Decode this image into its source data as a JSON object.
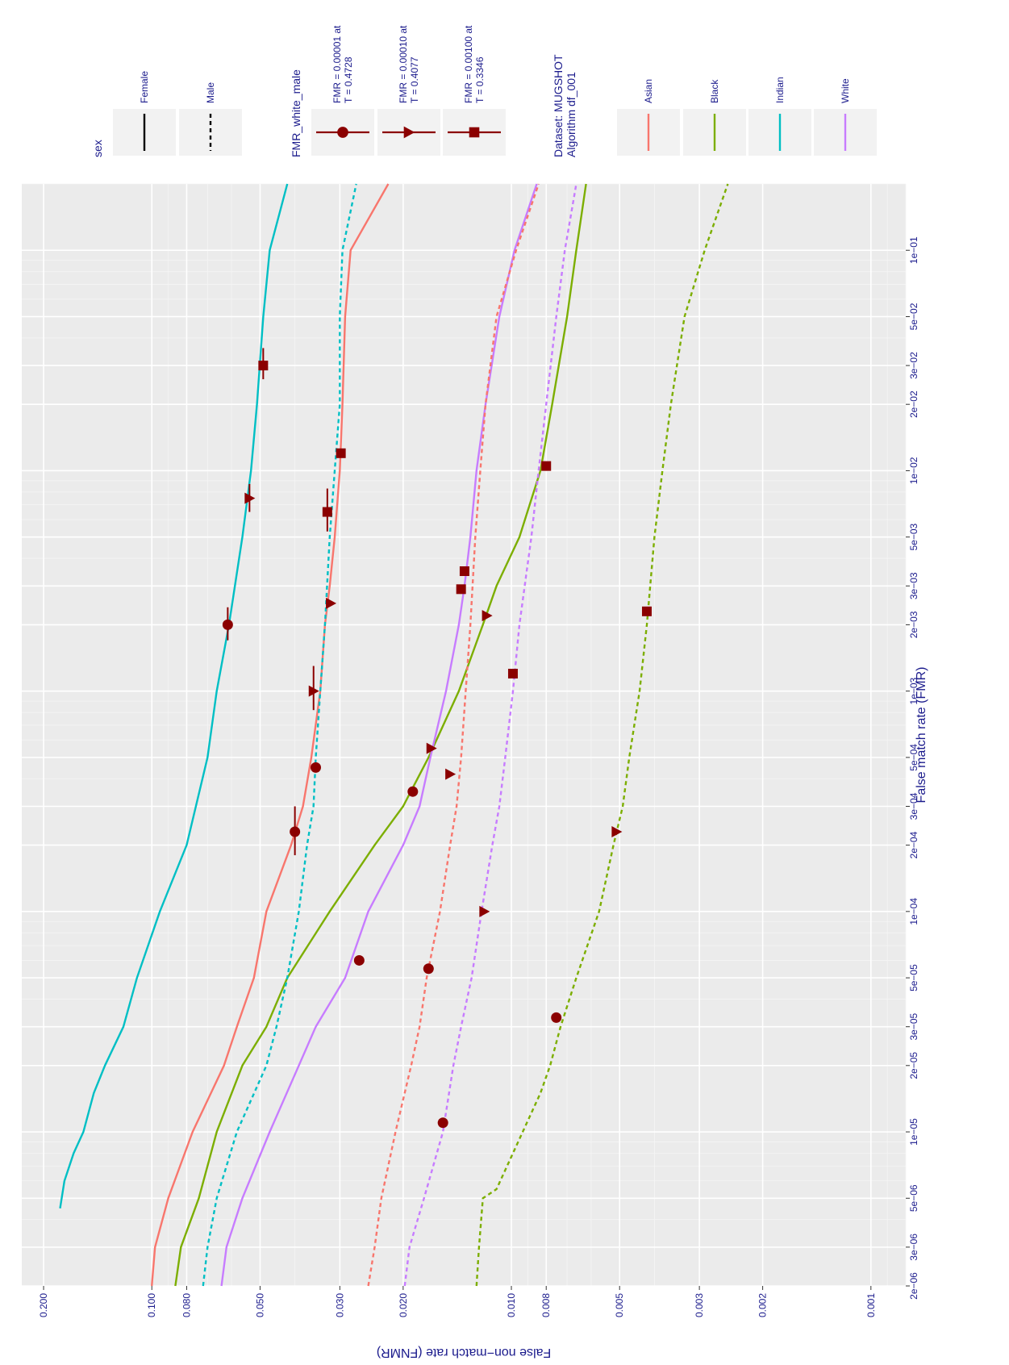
{
  "chart_data": {
    "type": "line",
    "title": "",
    "xlabel": "False match rate (FMR)",
    "ylabel": "False non−match rate (FNMR)",
    "x_scale": "log",
    "y_scale": "log",
    "xlim": [
      2e-06,
      0.2
    ],
    "ylim": [
      0.0008,
      0.23
    ],
    "x_ticks": [
      2e-06,
      3e-06,
      5e-06,
      1e-05,
      2e-05,
      3e-05,
      5e-05,
      0.0001,
      0.0002,
      0.0003,
      0.0005,
      0.001,
      0.002,
      0.003,
      0.005,
      0.01,
      0.02,
      0.03,
      0.05,
      0.1
    ],
    "x_tick_labels": [
      "2e−06",
      "3e−06",
      "5e−06",
      "1e−05",
      "2e−05",
      "3e−05",
      "5e−05",
      "1e−04",
      "2e−04",
      "3e−04",
      "5e−04",
      "1e−03",
      "2e−03",
      "3e−03",
      "5e−03",
      "1e−02",
      "2e−02",
      "3e−02",
      "5e−02",
      "1e−01"
    ],
    "y_ticks": [
      0.001,
      0.002,
      0.003,
      0.005,
      0.008,
      0.01,
      0.02,
      0.03,
      0.05,
      0.08,
      0.1,
      0.2
    ],
    "y_tick_labels": [
      "0.001",
      "0.002",
      "0.003",
      "0.005",
      "0.008",
      "0.010",
      "0.020",
      "0.030",
      "0.050",
      "0.080",
      "0.100",
      "0.200"
    ],
    "grid": true,
    "series": [
      {
        "name": "Indian Female",
        "color": "#00BFC4",
        "dash": "solid",
        "x": [
          4.5e-06,
          6e-06,
          8e-06,
          1e-05,
          1.5e-05,
          2e-05,
          3e-05,
          5e-05,
          0.0001,
          0.0002,
          0.0005,
          0.001,
          0.002,
          0.005,
          0.01,
          0.02,
          0.05,
          0.1,
          0.2
        ],
        "y": [
          0.18,
          0.175,
          0.165,
          0.155,
          0.145,
          0.135,
          0.12,
          0.11,
          0.095,
          0.08,
          0.07,
          0.066,
          0.061,
          0.056,
          0.053,
          0.051,
          0.049,
          0.047,
          0.042
        ]
      },
      {
        "name": "Asian Female",
        "color": "#F8766D",
        "dash": "solid",
        "x": [
          2e-06,
          3e-06,
          5e-06,
          1e-05,
          2e-05,
          3e-05,
          5e-05,
          0.0001,
          0.0002,
          0.0003,
          0.0005,
          0.001,
          0.002,
          0.003,
          0.005,
          0.01,
          0.02,
          0.05,
          0.1,
          0.2
        ],
        "y": [
          0.1,
          0.098,
          0.09,
          0.077,
          0.063,
          0.058,
          0.052,
          0.048,
          0.041,
          0.038,
          0.036,
          0.034,
          0.033,
          0.032,
          0.031,
          0.03,
          0.0295,
          0.029,
          0.028,
          0.022
        ]
      },
      {
        "name": "Black Female",
        "color": "#7CAE00",
        "dash": "solid",
        "x": [
          2e-06,
          3e-06,
          5e-06,
          1e-05,
          2e-05,
          3e-05,
          5e-05,
          0.0001,
          0.0002,
          0.0003,
          0.0005,
          0.001,
          0.002,
          0.003,
          0.005,
          0.01,
          0.02,
          0.05,
          0.1,
          0.2
        ],
        "y": [
          0.086,
          0.083,
          0.074,
          0.066,
          0.056,
          0.048,
          0.042,
          0.032,
          0.024,
          0.02,
          0.017,
          0.014,
          0.012,
          0.011,
          0.0095,
          0.0083,
          0.0077,
          0.007,
          0.0066,
          0.0062
        ]
      },
      {
        "name": "White Female",
        "color": "#C77CFF",
        "dash": "solid",
        "x": [
          2e-06,
          3e-06,
          5e-06,
          1e-05,
          2e-05,
          3e-05,
          5e-05,
          0.0001,
          0.0002,
          0.0003,
          0.0005,
          0.001,
          0.002,
          0.003,
          0.005,
          0.01,
          0.02,
          0.05,
          0.1,
          0.2
        ],
        "y": [
          0.064,
          0.062,
          0.056,
          0.047,
          0.039,
          0.035,
          0.029,
          0.025,
          0.02,
          0.018,
          0.0168,
          0.0152,
          0.014,
          0.0135,
          0.013,
          0.0125,
          0.0118,
          0.0108,
          0.0098,
          0.0085
        ]
      },
      {
        "name": "Indian Male",
        "color": "#00BFC4",
        "dash": "dashed",
        "x": [
          2e-06,
          3e-06,
          5e-06,
          1e-05,
          2e-05,
          3e-05,
          5e-05,
          0.0001,
          0.0002,
          0.0003,
          0.0005,
          0.001,
          0.002,
          0.005,
          0.01,
          0.02,
          0.05,
          0.1,
          0.2
        ],
        "y": [
          0.072,
          0.07,
          0.066,
          0.058,
          0.048,
          0.045,
          0.042,
          0.039,
          0.037,
          0.0355,
          0.035,
          0.034,
          0.033,
          0.032,
          0.031,
          0.03,
          0.03,
          0.0295,
          0.027
        ]
      },
      {
        "name": "Asian Male",
        "color": "#F8766D",
        "dash": "dashed",
        "x": [
          2e-06,
          3e-06,
          5e-06,
          1e-05,
          2e-05,
          3e-05,
          5e-05,
          0.0001,
          0.0002,
          0.0003,
          0.0005,
          0.001,
          0.002,
          0.005,
          0.01,
          0.02,
          0.05,
          0.1,
          0.2
        ],
        "y": [
          0.025,
          0.024,
          0.023,
          0.021,
          0.019,
          0.018,
          0.0172,
          0.0158,
          0.0148,
          0.0142,
          0.0138,
          0.0134,
          0.013,
          0.0126,
          0.0122,
          0.0118,
          0.011,
          0.0097,
          0.0084
        ]
      },
      {
        "name": "White Male",
        "color": "#C77CFF",
        "dash": "dashed",
        "x": [
          2e-06,
          3e-06,
          5e-06,
          1e-05,
          2e-05,
          3e-05,
          5e-05,
          0.0001,
          0.0002,
          0.0003,
          0.0005,
          0.001,
          0.002,
          0.005,
          0.01,
          0.02,
          0.05,
          0.1,
          0.2
        ],
        "y": [
          0.0198,
          0.0192,
          0.0175,
          0.0155,
          0.0145,
          0.0138,
          0.0129,
          0.0121,
          0.0113,
          0.0108,
          0.0104,
          0.0099,
          0.0095,
          0.0088,
          0.0084,
          0.008,
          0.0075,
          0.0071,
          0.0066
        ]
      },
      {
        "name": "Black Male",
        "color": "#7CAE00",
        "dash": "dashed",
        "x": [
          2e-06,
          3e-06,
          5e-06,
          5.5e-06,
          1e-05,
          1.5e-05,
          2e-05,
          3e-05,
          5e-05,
          0.0001,
          0.0002,
          0.0003,
          0.0005,
          0.001,
          0.002,
          0.005,
          0.01,
          0.02,
          0.05,
          0.1,
          0.2
        ],
        "y": [
          0.0125,
          0.0123,
          0.012,
          0.011,
          0.0093,
          0.0083,
          0.0078,
          0.0073,
          0.0066,
          0.0057,
          0.0052,
          0.0049,
          0.0047,
          0.0044,
          0.0042,
          0.004,
          0.0038,
          0.0036,
          0.0033,
          0.0029,
          0.0025
        ]
      }
    ],
    "markers": [
      {
        "group": "Indian Female",
        "shape": "circle",
        "x": 0.002,
        "y": 0.0615,
        "xerr": [
          0.0017,
          0.0024
        ]
      },
      {
        "group": "Indian Female",
        "shape": "triangle",
        "x": 0.0075,
        "y": 0.0535,
        "xerr": [
          0.0065,
          0.0087
        ]
      },
      {
        "group": "Indian Female",
        "shape": "square",
        "x": 0.03,
        "y": 0.049,
        "xerr": [
          0.026,
          0.036
        ]
      },
      {
        "group": "Asian Female",
        "shape": "circle",
        "x": 0.00023,
        "y": 0.04,
        "xerr": [
          0.00018,
          0.0003
        ]
      },
      {
        "group": "Asian Female",
        "shape": "triangle",
        "x": 0.001,
        "y": 0.0355,
        "xerr": [
          0.00082,
          0.0013
        ]
      },
      {
        "group": "Asian Female",
        "shape": "square",
        "x": 0.0065,
        "y": 0.0325,
        "xerr": [
          0.0053,
          0.0083
        ]
      },
      {
        "group": "Indian Male",
        "shape": "circle",
        "x": 0.00045,
        "y": 0.035
      },
      {
        "group": "Indian Male",
        "shape": "triangle",
        "x": 0.0025,
        "y": 0.0318
      },
      {
        "group": "Indian Male",
        "shape": "square",
        "x": 0.012,
        "y": 0.0298
      },
      {
        "group": "Black Female",
        "shape": "circle",
        "x": 0.00035,
        "y": 0.0188
      },
      {
        "group": "Black Female",
        "shape": "triangle",
        "x": 0.0022,
        "y": 0.0117
      },
      {
        "group": "Black Female",
        "shape": "square",
        "x": 0.0105,
        "y": 0.008
      },
      {
        "group": "White Female",
        "shape": "circle",
        "x": 6e-05,
        "y": 0.0265
      },
      {
        "group": "White Female",
        "shape": "triangle",
        "x": 0.00055,
        "y": 0.0167
      },
      {
        "group": "White Female",
        "shape": "square",
        "x": 0.0035,
        "y": 0.0135
      },
      {
        "group": "Asian Male",
        "shape": "circle",
        "x": 5.5e-05,
        "y": 0.017
      },
      {
        "group": "Asian Male",
        "shape": "triangle",
        "x": 0.00042,
        "y": 0.0148
      },
      {
        "group": "Asian Male",
        "shape": "square",
        "x": 0.0029,
        "y": 0.0138
      },
      {
        "group": "White Male",
        "shape": "circle",
        "x": 1.1e-05,
        "y": 0.0155
      },
      {
        "group": "White Male",
        "shape": "triangle",
        "x": 0.0001,
        "y": 0.0119
      },
      {
        "group": "White Male",
        "shape": "square",
        "x": 0.0012,
        "y": 0.0099
      },
      {
        "group": "Black Male",
        "shape": "circle",
        "x": 3.3e-05,
        "y": 0.0075
      },
      {
        "group": "Black Male",
        "shape": "triangle",
        "x": 0.00023,
        "y": 0.0051
      },
      {
        "group": "Black Male",
        "shape": "square",
        "x": 0.0023,
        "y": 0.0042
      }
    ],
    "legend": {
      "placement": "right",
      "sex": {
        "title": "sex",
        "items": [
          {
            "label": "Female",
            "dash": "solid"
          },
          {
            "label": "Male",
            "dash": "dashed"
          }
        ]
      },
      "fmr": {
        "title": "FMR_white_male",
        "items": [
          {
            "label": "FMR = 0.00001 at T = 0.4728",
            "line1": "FMR = 0.00001 at",
            "line2": "T = 0.4728",
            "shape": "circle"
          },
          {
            "label": "FMR = 0.00010 at T = 0.4077",
            "line1": "FMR = 0.00010 at",
            "line2": "T = 0.4077",
            "shape": "triangle"
          },
          {
            "label": "FMR = 0.00100 at T = 0.3346",
            "line1": "FMR = 0.00100 at",
            "line2": "T = 0.3346",
            "shape": "square"
          }
        ]
      },
      "dataset": {
        "title_line1": "Dataset: MUGSHOT",
        "title_line2": "Algorithm df_001",
        "items": [
          {
            "label": "Asian",
            "color": "#F8766D"
          },
          {
            "label": "Black",
            "color": "#7CAE00"
          },
          {
            "label": "Indian",
            "color": "#00BFC4"
          },
          {
            "label": "White",
            "color": "#C77CFF"
          }
        ]
      }
    },
    "colors": {
      "panel": "#EBEBEB",
      "grid_major": "#FFFFFF",
      "marker": "#8B0000",
      "text": "#1A1A8C",
      "key_bg": "#F2F2F2"
    }
  }
}
